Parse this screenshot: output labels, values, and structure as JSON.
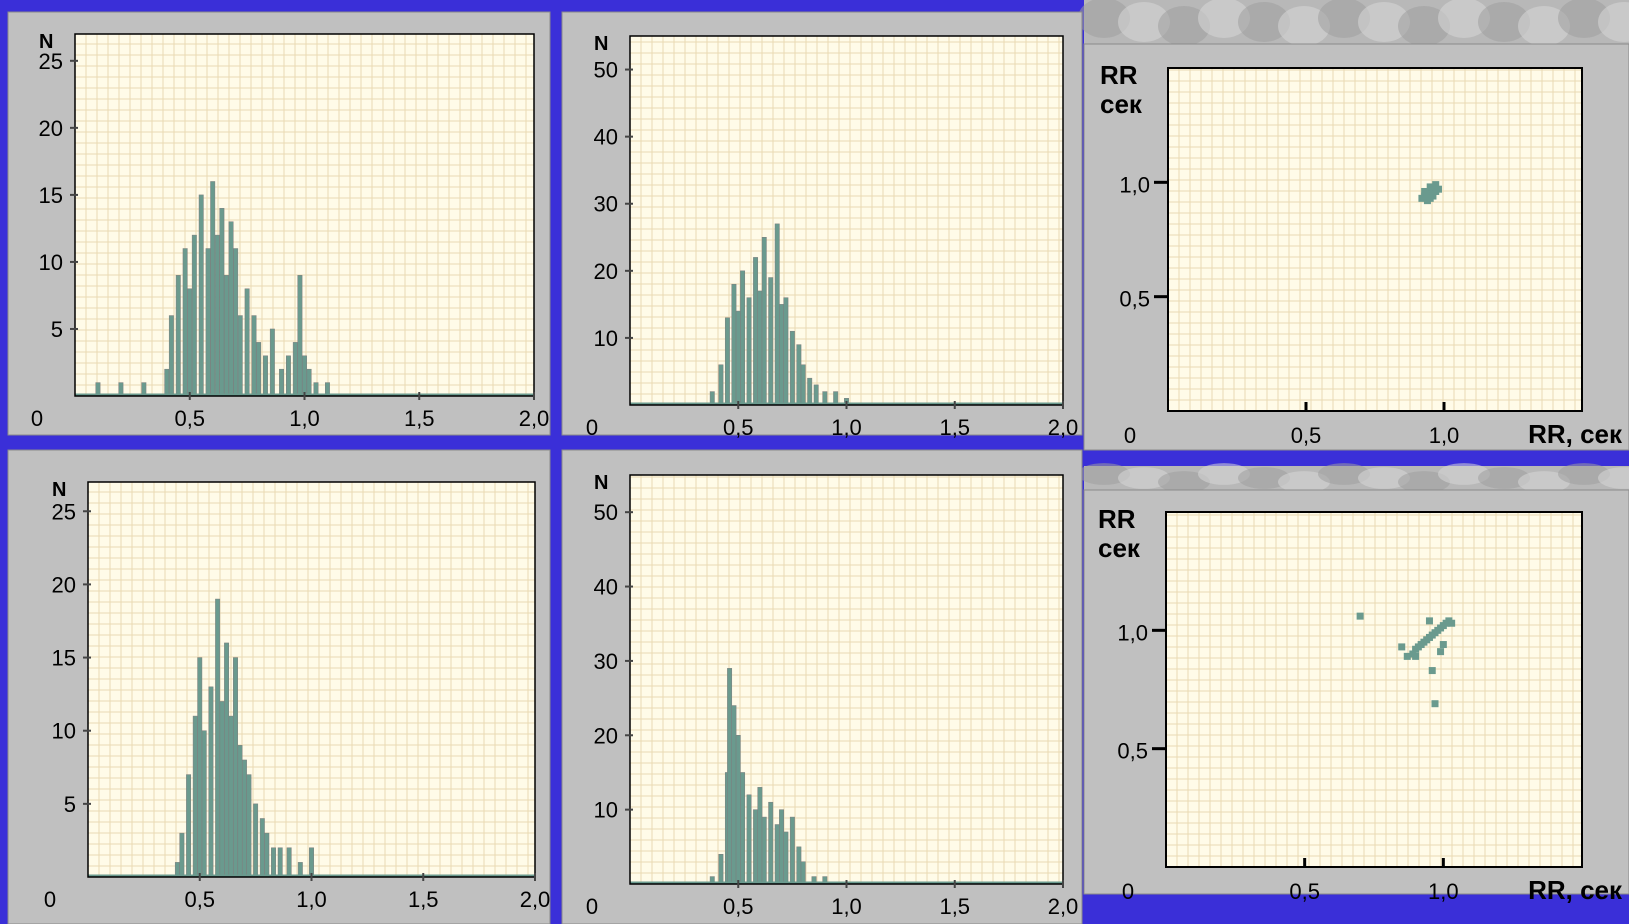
{
  "colors": {
    "background": "#3a2fd8",
    "panel": "#c0c0c0",
    "plot_bg": "#fffbe8",
    "grid": "#ead9b3",
    "data": "#6a9a8e"
  },
  "chart_data": [
    {
      "id": "hist-top-left",
      "type": "bar",
      "ylabel": "N",
      "y_ticks": [
        "5",
        "10",
        "15",
        "20",
        "25"
      ],
      "ylim": [
        0,
        27
      ],
      "x_ticks": [
        "0,5",
        "1,0",
        "1,5",
        "2,0"
      ],
      "xlim": [
        0,
        2.0
      ],
      "origin_label": "0",
      "grid": true,
      "x": [
        0.1,
        0.2,
        0.3,
        0.4,
        0.42,
        0.45,
        0.48,
        0.5,
        0.52,
        0.55,
        0.58,
        0.6,
        0.62,
        0.64,
        0.66,
        0.68,
        0.7,
        0.72,
        0.75,
        0.78,
        0.8,
        0.83,
        0.86,
        0.9,
        0.93,
        0.96,
        0.98,
        1.0,
        1.02,
        1.05,
        1.1
      ],
      "values": [
        1,
        1,
        1,
        2,
        6,
        9,
        11,
        8,
        12,
        15,
        11,
        16,
        12,
        14,
        9,
        13,
        11,
        6,
        8,
        6,
        4,
        3,
        5,
        2,
        3,
        4,
        9,
        3,
        2,
        1,
        1
      ]
    },
    {
      "id": "hist-top-middle",
      "type": "bar",
      "ylabel": "N",
      "y_ticks": [
        "10",
        "20",
        "30",
        "40",
        "50"
      ],
      "ylim": [
        0,
        55
      ],
      "x_ticks": [
        "0,5",
        "1,0",
        "1,5",
        "2,0"
      ],
      "xlim": [
        0,
        2.0
      ],
      "origin_label": "0",
      "grid": true,
      "x": [
        0.38,
        0.42,
        0.45,
        0.48,
        0.5,
        0.52,
        0.55,
        0.58,
        0.6,
        0.62,
        0.65,
        0.68,
        0.7,
        0.72,
        0.75,
        0.78,
        0.8,
        0.83,
        0.86,
        0.9,
        0.95,
        1.0
      ],
      "values": [
        2,
        6,
        13,
        18,
        14,
        20,
        16,
        22,
        17,
        25,
        19,
        27,
        15,
        16,
        11,
        9,
        6,
        4,
        3,
        2,
        2,
        1
      ]
    },
    {
      "id": "scatter-top",
      "type": "scatter",
      "ylabel_lines": [
        "RR",
        "сек"
      ],
      "xlabel": "RR, сек",
      "x_ticks": [
        "0,5",
        "1,0"
      ],
      "y_ticks": [
        "0,5",
        "1,0"
      ],
      "xlim": [
        0,
        1.5
      ],
      "ylim": [
        0,
        1.5
      ],
      "origin_label": "0",
      "grid": true,
      "points": [
        [
          0.92,
          0.93
        ],
        [
          0.93,
          0.94
        ],
        [
          0.94,
          0.95
        ],
        [
          0.95,
          0.96
        ],
        [
          0.96,
          0.97
        ],
        [
          0.94,
          0.92
        ],
        [
          0.96,
          0.94
        ],
        [
          0.97,
          0.96
        ],
        [
          0.95,
          0.98
        ],
        [
          0.93,
          0.96
        ],
        [
          0.98,
          0.97
        ],
        [
          0.97,
          0.99
        ],
        [
          0.95,
          0.93
        ]
      ]
    },
    {
      "id": "hist-bottom-left",
      "type": "bar",
      "ylabel": "N",
      "y_ticks": [
        "5",
        "10",
        "15",
        "20",
        "25"
      ],
      "ylim": [
        0,
        27
      ],
      "x_ticks": [
        "0,5",
        "1,0",
        "1,5",
        "2,0"
      ],
      "xlim": [
        0,
        2.0
      ],
      "origin_label": "0",
      "grid": true,
      "x": [
        0.4,
        0.42,
        0.45,
        0.48,
        0.5,
        0.52,
        0.55,
        0.58,
        0.6,
        0.62,
        0.64,
        0.66,
        0.68,
        0.7,
        0.72,
        0.75,
        0.78,
        0.8,
        0.83,
        0.86,
        0.9,
        0.95,
        1.0
      ],
      "values": [
        1,
        3,
        7,
        11,
        15,
        10,
        13,
        19,
        12,
        16,
        11,
        15,
        9,
        8,
        7,
        5,
        4,
        3,
        2,
        2,
        2,
        1,
        2
      ]
    },
    {
      "id": "hist-bottom-middle",
      "type": "bar",
      "ylabel": "N",
      "y_ticks": [
        "10",
        "20",
        "30",
        "40",
        "50"
      ],
      "ylim": [
        0,
        55
      ],
      "x_ticks": [
        "0,5",
        "1,0",
        "1,5",
        "2,0"
      ],
      "xlim": [
        0,
        2.0
      ],
      "origin_label": "0",
      "grid": true,
      "x": [
        0.38,
        0.42,
        0.45,
        0.46,
        0.48,
        0.5,
        0.52,
        0.55,
        0.58,
        0.6,
        0.62,
        0.65,
        0.68,
        0.7,
        0.72,
        0.75,
        0.78,
        0.8,
        0.85,
        0.9
      ],
      "values": [
        1,
        4,
        15,
        29,
        24,
        20,
        15,
        12,
        10,
        13,
        9,
        11,
        8,
        10,
        7,
        9,
        5,
        3,
        1,
        1
      ]
    },
    {
      "id": "scatter-bottom",
      "type": "scatter",
      "ylabel_lines": [
        "RR",
        "сек"
      ],
      "xlabel": "RR, сек",
      "x_ticks": [
        "0,5",
        "1,0"
      ],
      "y_ticks": [
        "0,5",
        "1,0"
      ],
      "xlim": [
        0,
        1.5
      ],
      "ylim": [
        0,
        1.5
      ],
      "origin_label": "0",
      "grid": true,
      "points": [
        [
          0.7,
          1.06
        ],
        [
          0.85,
          0.93
        ],
        [
          0.87,
          0.89
        ],
        [
          0.89,
          0.9
        ],
        [
          0.9,
          0.92
        ],
        [
          0.91,
          0.93
        ],
        [
          0.92,
          0.94
        ],
        [
          0.93,
          0.95
        ],
        [
          0.94,
          0.96
        ],
        [
          0.95,
          0.97
        ],
        [
          0.96,
          0.98
        ],
        [
          0.97,
          0.99
        ],
        [
          0.98,
          1.0
        ],
        [
          0.99,
          1.01
        ],
        [
          1.0,
          1.02
        ],
        [
          1.01,
          1.03
        ],
        [
          1.02,
          1.04
        ],
        [
          1.03,
          1.03
        ],
        [
          0.95,
          1.04
        ],
        [
          0.9,
          0.89
        ],
        [
          0.96,
          0.83
        ],
        [
          0.97,
          0.69
        ],
        [
          0.99,
          0.91
        ],
        [
          1.0,
          0.94
        ]
      ]
    }
  ]
}
